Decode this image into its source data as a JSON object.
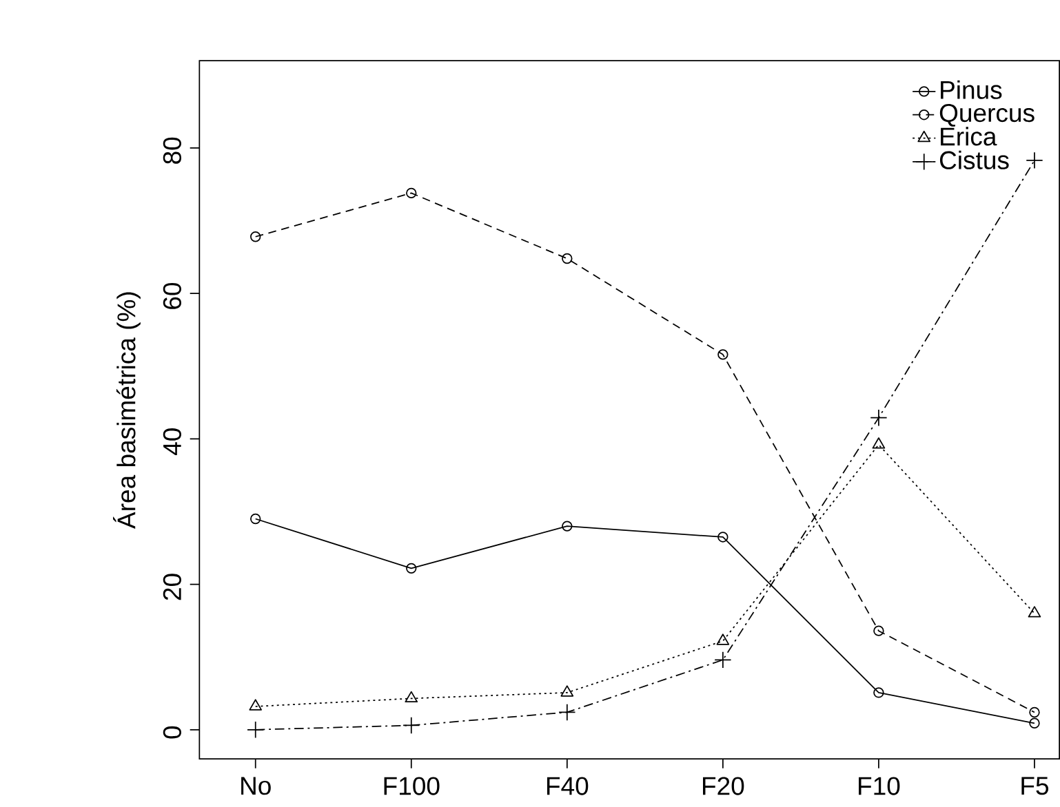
{
  "chart_data": {
    "type": "line",
    "ylabel": "Área basimétrica (%)",
    "categories": [
      "No",
      "F100",
      "F40",
      "F20",
      "F10",
      "F5"
    ],
    "ylim": [
      -4,
      92
    ],
    "yticks": [
      0,
      20,
      40,
      60,
      80
    ],
    "legend": "top right",
    "grid": false,
    "series": [
      {
        "name": "Pinus",
        "color": "#000000",
        "marker": "circle",
        "line_style": "solid",
        "values": [
          29.0,
          22.2,
          28.0,
          26.5,
          5.1,
          0.9
        ]
      },
      {
        "name": "Quercus",
        "color": "#000000",
        "marker": "circle",
        "line_style": "dashed",
        "values": [
          67.8,
          73.8,
          64.8,
          51.6,
          13.6,
          2.4
        ]
      },
      {
        "name": "Erica",
        "color": "#000000",
        "marker": "triangle",
        "line_style": "dotted",
        "values": [
          3.2,
          4.3,
          5.1,
          12.2,
          39.2,
          16.0
        ]
      },
      {
        "name": "Cistus",
        "color": "#000000",
        "marker": "cross",
        "line_style": "dashdot",
        "values": [
          0.0,
          0.6,
          2.4,
          9.6,
          42.9,
          78.3
        ]
      }
    ]
  }
}
